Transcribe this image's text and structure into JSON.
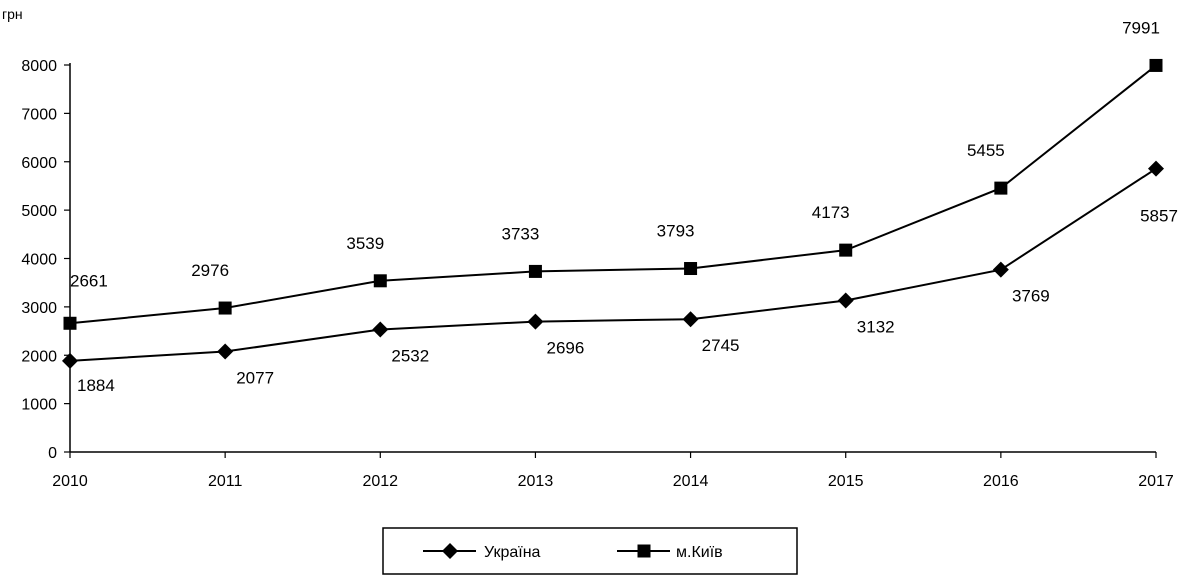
{
  "chart_data": {
    "type": "line",
    "ylabel": "грн",
    "x": [
      "2010",
      "2011",
      "2012",
      "2013",
      "2014",
      "2015",
      "2016",
      "2017"
    ],
    "ylim": [
      0,
      8000
    ],
    "yticks": [
      "0",
      "1000",
      "2000",
      "3000",
      "4000",
      "5000",
      "6000",
      "7000",
      "8000"
    ],
    "grid": false,
    "legend_position": "bottom",
    "series": [
      {
        "name": "Україна",
        "marker": "diamond",
        "color": "#000000",
        "values": [
          1884,
          2077,
          2532,
          2696,
          2745,
          3132,
          3769,
          5857
        ]
      },
      {
        "name": "м.Київ",
        "marker": "square",
        "color": "#000000",
        "values": [
          2661,
          2976,
          3539,
          3733,
          3793,
          4173,
          5455,
          7991
        ]
      }
    ]
  }
}
